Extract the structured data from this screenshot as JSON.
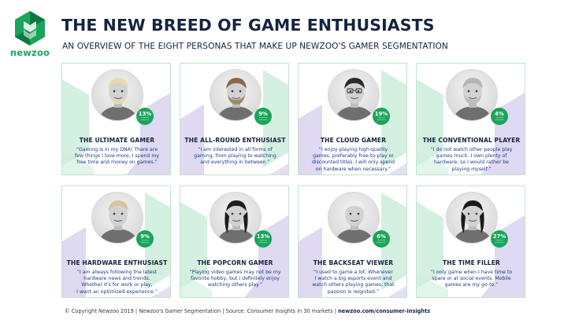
{
  "brand": {
    "name": "newzoo",
    "green": "#1aa55a",
    "dark_green": "#0b7a3e",
    "navy": "#16243f",
    "quote_blue": "#1f3a8a"
  },
  "header": {
    "title": "THE NEW BREED OF GAME ENTHUSIASTS",
    "subtitle": "AN OVERVIEW OF THE EIGHT PERSONAS THAT MAKE UP NEWZOO'S GAMER SEGMENTATION"
  },
  "personas": [
    {
      "name": "THE ULTIMATE GAMER",
      "share": "13%",
      "share_note": "of gaming enthusiasts",
      "quote": [
        "“Gaming is in my DNA! There are",
        "few things I love more. I spend my",
        "free time and money on games.”"
      ],
      "deco": "purple-right",
      "hair": "#e9d9b0",
      "beard": true,
      "glasses": false
    },
    {
      "name": "THE ALL-ROUND ENTHUSIAST",
      "share": "9%",
      "share_note": "of gaming enthusiasts",
      "quote": [
        "“I am interested in all forms of",
        "gaming, from playing to watching",
        "and everything in between.”"
      ],
      "deco": "purple-left",
      "hair": "#8a6a45",
      "beard": true,
      "glasses": false
    },
    {
      "name": "THE CLOUD GAMER",
      "share": "19%",
      "share_note": "of gaming enthusiasts",
      "quote": [
        "“I enjoy playing high-quality",
        "games, preferably free-to-play or",
        "discounted titles. I will only spend",
        "on hardware when necessary.”"
      ],
      "deco": "purple-left",
      "hair": "#2a2a2a",
      "beard": false,
      "glasses": true
    },
    {
      "name": "THE CONVENTIONAL PLAYER",
      "share": "4%",
      "share_note": "of gaming enthusiasts",
      "quote": [
        "“I do not watch other people play",
        "games much. I own plenty of",
        "hardware, so I would rather be",
        "playing myself.”"
      ],
      "deco": "purple-right",
      "hair": "#b5b5b5",
      "beard": true,
      "glasses": false
    },
    {
      "name": "THE HARDWARE ENTHUSIAST",
      "share": "9%",
      "share_note": "of gaming enthusiasts",
      "quote": [
        "“I am always following the latest",
        "hardware news and trends.",
        "Whether it's for work or play,",
        "I want an optimized experience.”"
      ],
      "deco": "purple-left",
      "hair": "#d8c49a",
      "beard": false,
      "glasses": false
    },
    {
      "name": "THE POPCORN GAMER",
      "share": "13%",
      "share_note": "of gaming enthusiasts",
      "quote": [
        "“Playing video games may not be my",
        "favorite hobby, but I definitely enjoy",
        "watching others play.”"
      ],
      "deco": "purple-right",
      "hair": "#1e1e1e",
      "beard": false,
      "glasses": false
    },
    {
      "name": "THE BACKSEAT VIEWER",
      "share": "6%",
      "share_note": "of gaming enthusiasts",
      "quote": [
        "“I used to game a lot. Whenever",
        "I watch a big esports event and",
        "watch others playing games, that",
        "passion is reignited.”"
      ],
      "deco": "purple-left",
      "hair": "#eeeeee",
      "beard": false,
      "glasses": false
    },
    {
      "name": "THE TIME FILLER",
      "share": "27%",
      "share_note": "of gaming enthusiasts",
      "quote": [
        "“I only game when I have time to",
        "spare or at social events. Mobile",
        "games are my go-to.”"
      ],
      "deco": "purple-right",
      "hair": "#1a1a1a",
      "beard": false,
      "glasses": false
    }
  ],
  "footer": {
    "text": "© Copyright Newzoo 2019 | Newzoo's Gamer Segmentation | Source: Consumer Insights in 30 markets | ",
    "link": "newzoo.com/consumer-insights"
  }
}
